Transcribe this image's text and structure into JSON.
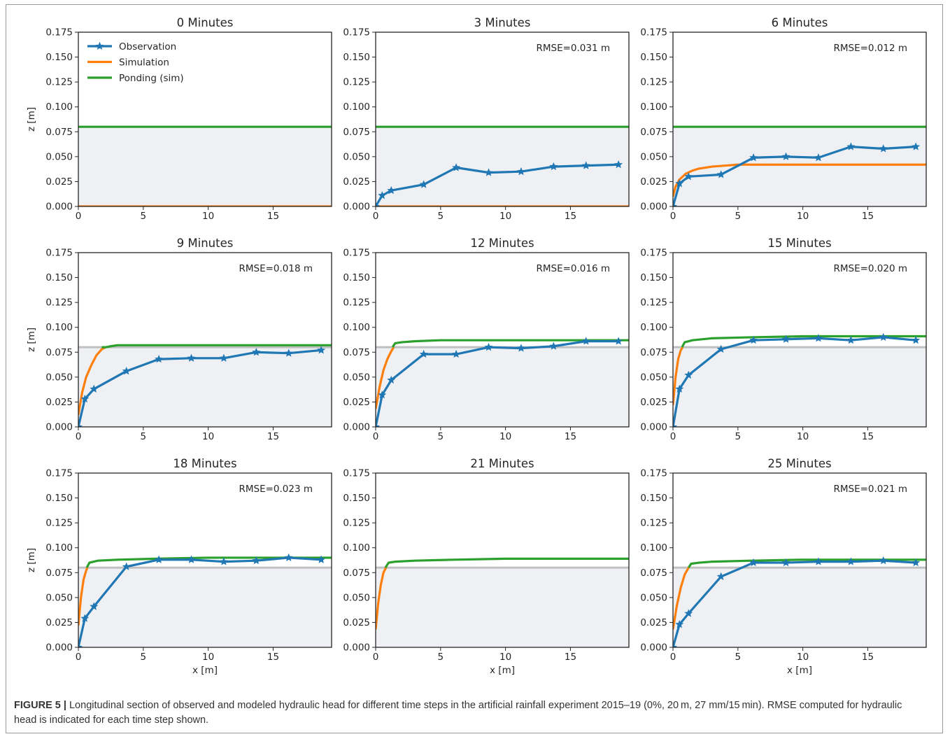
{
  "figure": {
    "caption_label": "FIGURE 5 |",
    "caption_text": " Longitudinal section of observed and modeled hydraulic head for different time steps in the artificial rainfall experiment 2015–19 (0%, 20 m, 27 mm/15 min). RMSE computed for hydraulic head is indicated for each time step shown.",
    "colors": {
      "observation": "#1f77b4",
      "simulation": "#ff7f0e",
      "ponding": "#2ca02c",
      "surface_line": "#c0c0c0",
      "soil_fill": "#eef0f3"
    }
  },
  "chart_data": [
    {
      "type": "line",
      "title": "0 Minutes",
      "xlabel": "",
      "ylabel": "z [m]",
      "xlim": [
        0,
        19.5
      ],
      "ylim": [
        0,
        0.175
      ],
      "x_ticks": [
        "0",
        "5",
        "10",
        "15"
      ],
      "y_ticks": [
        "0.000",
        "0.025",
        "0.050",
        "0.075",
        "0.100",
        "0.125",
        "0.150",
        "0.175"
      ],
      "annotation": "",
      "legend": {
        "placement": "top-left",
        "entries": [
          "Observation",
          "Simulation",
          "Ponding (sim)"
        ]
      },
      "surface_level": 0.08,
      "series": [
        {
          "name": "Simulation",
          "x": [
            0,
            19.5
          ],
          "y": [
            0,
            0
          ]
        },
        {
          "name": "Ponding (sim)",
          "x": [
            0,
            19.5
          ],
          "y": [
            0.08,
            0.08
          ]
        }
      ]
    },
    {
      "type": "line",
      "title": "3 Minutes",
      "xlabel": "",
      "ylabel": "",
      "xlim": [
        0,
        19.5
      ],
      "ylim": [
        0,
        0.175
      ],
      "x_ticks": [
        "0",
        "5",
        "10",
        "15"
      ],
      "y_ticks": [
        "0.000",
        "0.025",
        "0.050",
        "0.075",
        "0.100",
        "0.125",
        "0.150",
        "0.175"
      ],
      "annotation": "RMSE=0.031 m",
      "surface_level": 0.08,
      "series": [
        {
          "name": "Observation",
          "markers": true,
          "x": [
            0,
            0.5,
            1.2,
            3.7,
            6.2,
            8.7,
            11.2,
            13.7,
            16.2,
            18.7
          ],
          "y": [
            0,
            0.011,
            0.016,
            0.022,
            0.039,
            0.034,
            0.035,
            0.04,
            0.041,
            0.042
          ]
        },
        {
          "name": "Simulation",
          "x": [
            0,
            19.5
          ],
          "y": [
            0,
            0
          ]
        },
        {
          "name": "Ponding (sim)",
          "x": [
            0,
            19.5
          ],
          "y": [
            0.08,
            0.08
          ]
        }
      ]
    },
    {
      "type": "line",
      "title": "6 Minutes",
      "xlabel": "",
      "ylabel": "",
      "xlim": [
        0,
        19.5
      ],
      "ylim": [
        0,
        0.175
      ],
      "x_ticks": [
        "0",
        "5",
        "10",
        "15"
      ],
      "y_ticks": [
        "0.000",
        "0.025",
        "0.050",
        "0.075",
        "0.100",
        "0.125",
        "0.150",
        "0.175"
      ],
      "annotation": "RMSE=0.012 m",
      "surface_level": 0.08,
      "series": [
        {
          "name": "Observation",
          "markers": true,
          "x": [
            0,
            0.5,
            1.2,
            3.7,
            6.2,
            8.7,
            11.2,
            13.7,
            16.2,
            18.7
          ],
          "y": [
            0,
            0.023,
            0.03,
            0.032,
            0.049,
            0.05,
            0.049,
            0.06,
            0.058,
            0.06
          ]
        },
        {
          "name": "Simulation",
          "x": [
            0,
            0.2,
            0.5,
            1.0,
            1.5,
            2.0,
            3.0,
            4.0,
            5.0,
            19.5
          ],
          "y": [
            0.01,
            0.02,
            0.027,
            0.033,
            0.036,
            0.038,
            0.04,
            0.041,
            0.042,
            0.042
          ]
        },
        {
          "name": "Ponding (sim)",
          "x": [
            0,
            19.5
          ],
          "y": [
            0.08,
            0.08
          ]
        }
      ]
    },
    {
      "type": "line",
      "title": "9 Minutes",
      "xlabel": "",
      "ylabel": "z [m]",
      "xlim": [
        0,
        19.5
      ],
      "ylim": [
        0,
        0.175
      ],
      "x_ticks": [
        "0",
        "5",
        "10",
        "15"
      ],
      "y_ticks": [
        "0.000",
        "0.025",
        "0.050",
        "0.075",
        "0.100",
        "0.125",
        "0.150",
        "0.175"
      ],
      "annotation": "RMSE=0.018 m",
      "surface_level": 0.08,
      "series": [
        {
          "name": "Observation",
          "markers": true,
          "x": [
            0,
            0.5,
            1.2,
            3.7,
            6.2,
            8.7,
            11.2,
            13.7,
            16.2,
            18.7
          ],
          "y": [
            0,
            0.028,
            0.038,
            0.056,
            0.068,
            0.069,
            0.069,
            0.075,
            0.074,
            0.077
          ]
        },
        {
          "name": "Simulation",
          "x": [
            0,
            0.3,
            0.6,
            1.0,
            1.4,
            1.8,
            2.1
          ],
          "y": [
            0.012,
            0.035,
            0.05,
            0.062,
            0.072,
            0.078,
            0.08
          ]
        },
        {
          "name": "Ponding (sim)",
          "x": [
            1.8,
            2.1,
            2.5,
            3,
            5,
            10,
            19.5
          ],
          "y": [
            0.08,
            0.08,
            0.081,
            0.082,
            0.082,
            0.082,
            0.082
          ]
        }
      ]
    },
    {
      "type": "line",
      "title": "12 Minutes",
      "xlabel": "",
      "ylabel": "",
      "xlim": [
        0,
        19.5
      ],
      "ylim": [
        0,
        0.175
      ],
      "x_ticks": [
        "0",
        "5",
        "10",
        "15"
      ],
      "y_ticks": [
        "0.000",
        "0.025",
        "0.050",
        "0.075",
        "0.100",
        "0.125",
        "0.150",
        "0.175"
      ],
      "annotation": "RMSE=0.016 m",
      "surface_level": 0.08,
      "series": [
        {
          "name": "Observation",
          "markers": true,
          "x": [
            0,
            0.5,
            1.2,
            3.7,
            6.2,
            8.7,
            11.2,
            13.7,
            16.2,
            18.7
          ],
          "y": [
            0,
            0.032,
            0.047,
            0.073,
            0.073,
            0.08,
            0.079,
            0.081,
            0.086,
            0.086
          ]
        },
        {
          "name": "Simulation",
          "x": [
            0,
            0.3,
            0.6,
            0.9,
            1.2,
            1.4
          ],
          "y": [
            0.018,
            0.04,
            0.057,
            0.068,
            0.076,
            0.08
          ]
        },
        {
          "name": "Ponding (sim)",
          "x": [
            1.3,
            1.5,
            2,
            3,
            5,
            8,
            19.5
          ],
          "y": [
            0.08,
            0.084,
            0.085,
            0.086,
            0.087,
            0.087,
            0.087
          ]
        }
      ]
    },
    {
      "type": "line",
      "title": "15 Minutes",
      "xlabel": "",
      "ylabel": "",
      "xlim": [
        0,
        19.5
      ],
      "ylim": [
        0,
        0.175
      ],
      "x_ticks": [
        "0",
        "5",
        "10",
        "15"
      ],
      "y_ticks": [
        "0.000",
        "0.025",
        "0.050",
        "0.075",
        "0.100",
        "0.125",
        "0.150",
        "0.175"
      ],
      "annotation": "RMSE=0.020 m",
      "surface_level": 0.08,
      "series": [
        {
          "name": "Observation",
          "markers": true,
          "x": [
            0,
            0.5,
            1.2,
            3.7,
            6.2,
            8.7,
            11.2,
            13.7,
            16.2,
            18.7
          ],
          "y": [
            0,
            0.038,
            0.052,
            0.078,
            0.087,
            0.088,
            0.089,
            0.087,
            0.09,
            0.087
          ]
        },
        {
          "name": "Simulation",
          "x": [
            0,
            0.2,
            0.4,
            0.6,
            0.75
          ],
          "y": [
            0.022,
            0.05,
            0.068,
            0.077,
            0.08
          ]
        },
        {
          "name": "Ponding (sim)",
          "x": [
            0.7,
            0.9,
            1.5,
            3,
            6,
            10,
            15,
            19.5
          ],
          "y": [
            0.08,
            0.085,
            0.087,
            0.089,
            0.09,
            0.091,
            0.091,
            0.091
          ]
        }
      ]
    },
    {
      "type": "line",
      "title": "18 Minutes",
      "xlabel": "x [m]",
      "ylabel": "z [m]",
      "xlim": [
        0,
        19.5
      ],
      "ylim": [
        0,
        0.175
      ],
      "x_ticks": [
        "0",
        "5",
        "10",
        "15"
      ],
      "y_ticks": [
        "0.000",
        "0.025",
        "0.050",
        "0.075",
        "0.100",
        "0.125",
        "0.150",
        "0.175"
      ],
      "annotation": "RMSE=0.023 m",
      "surface_level": 0.08,
      "series": [
        {
          "name": "Observation",
          "markers": true,
          "x": [
            0,
            0.5,
            1.2,
            3.7,
            6.2,
            8.7,
            11.2,
            13.7,
            16.2,
            18.7
          ],
          "y": [
            0,
            0.029,
            0.041,
            0.081,
            0.088,
            0.088,
            0.086,
            0.087,
            0.09,
            0.088
          ]
        },
        {
          "name": "Simulation",
          "x": [
            0,
            0.2,
            0.4,
            0.6,
            0.7
          ],
          "y": [
            0.022,
            0.05,
            0.068,
            0.077,
            0.08
          ]
        },
        {
          "name": "Ponding (sim)",
          "x": [
            0.65,
            0.85,
            1.5,
            3,
            6,
            10,
            15,
            19.5
          ],
          "y": [
            0.08,
            0.085,
            0.087,
            0.088,
            0.089,
            0.09,
            0.09,
            0.09
          ]
        }
      ]
    },
    {
      "type": "line",
      "title": "21 Minutes",
      "xlabel": "x [m]",
      "ylabel": "",
      "xlim": [
        0,
        19.5
      ],
      "ylim": [
        0,
        0.175
      ],
      "x_ticks": [
        "0",
        "5",
        "10",
        "15"
      ],
      "y_ticks": [
        "0.000",
        "0.025",
        "0.050",
        "0.075",
        "0.100",
        "0.125",
        "0.150",
        "0.175"
      ],
      "annotation": "",
      "surface_level": 0.08,
      "series": [
        {
          "name": "Simulation",
          "x": [
            0,
            0.2,
            0.4,
            0.6,
            0.8
          ],
          "y": [
            0.018,
            0.045,
            0.063,
            0.075,
            0.08
          ]
        },
        {
          "name": "Ponding (sim)",
          "x": [
            0.75,
            1.0,
            1.5,
            3,
            6,
            10,
            15,
            19.5
          ],
          "y": [
            0.08,
            0.085,
            0.086,
            0.087,
            0.088,
            0.089,
            0.089,
            0.089
          ]
        }
      ]
    },
    {
      "type": "line",
      "title": "25 Minutes",
      "xlabel": "x [m]",
      "ylabel": "",
      "xlim": [
        0,
        19.5
      ],
      "ylim": [
        0,
        0.175
      ],
      "x_ticks": [
        "0",
        "5",
        "10",
        "15"
      ],
      "y_ticks": [
        "0.000",
        "0.025",
        "0.050",
        "0.075",
        "0.100",
        "0.125",
        "0.150",
        "0.175"
      ],
      "annotation": "RMSE=0.021 m",
      "surface_level": 0.08,
      "series": [
        {
          "name": "Observation",
          "markers": true,
          "x": [
            0,
            0.5,
            1.2,
            3.7,
            6.2,
            8.7,
            11.2,
            13.7,
            16.2,
            18.7
          ],
          "y": [
            0,
            0.023,
            0.034,
            0.071,
            0.085,
            0.085,
            0.086,
            0.086,
            0.087,
            0.085
          ]
        },
        {
          "name": "Simulation",
          "x": [
            0,
            0.3,
            0.6,
            0.9,
            1.2
          ],
          "y": [
            0.018,
            0.042,
            0.06,
            0.073,
            0.08
          ]
        },
        {
          "name": "Ponding (sim)",
          "x": [
            1.2,
            1.4,
            2,
            3,
            6,
            10,
            15,
            19.5
          ],
          "y": [
            0.08,
            0.084,
            0.085,
            0.086,
            0.087,
            0.088,
            0.088,
            0.088
          ]
        }
      ]
    }
  ]
}
